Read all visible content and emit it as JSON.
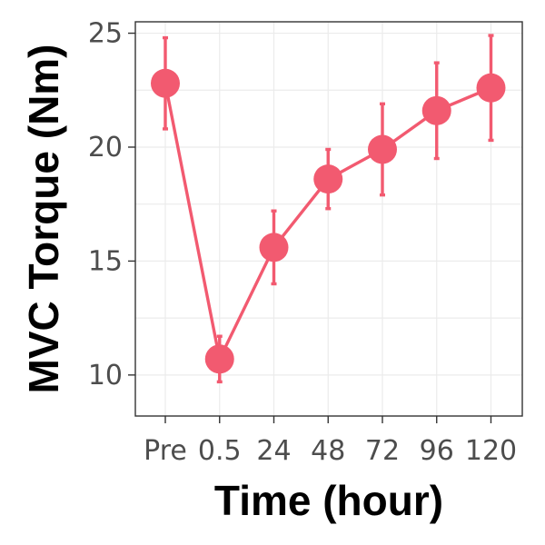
{
  "chart_data": {
    "type": "line",
    "title": "",
    "xlabel": "Time (hour)",
    "ylabel": "MVC Torque (Nm)",
    "categories": [
      "Pre",
      "0.5",
      "24",
      "48",
      "72",
      "96",
      "120"
    ],
    "series": [
      {
        "values": [
          22.8,
          10.7,
          15.6,
          18.6,
          19.9,
          21.6,
          22.6
        ],
        "error_upper": [
          24.8,
          11.7,
          17.2,
          19.9,
          21.9,
          23.7,
          24.9
        ],
        "error_lower": [
          20.8,
          9.7,
          14.0,
          17.3,
          17.9,
          19.5,
          20.3
        ],
        "color": "#F25A70"
      }
    ],
    "yticks": [
      10,
      15,
      20,
      25
    ],
    "ylim": [
      8.2,
      25.5
    ],
    "grid": true,
    "legend": "none"
  }
}
